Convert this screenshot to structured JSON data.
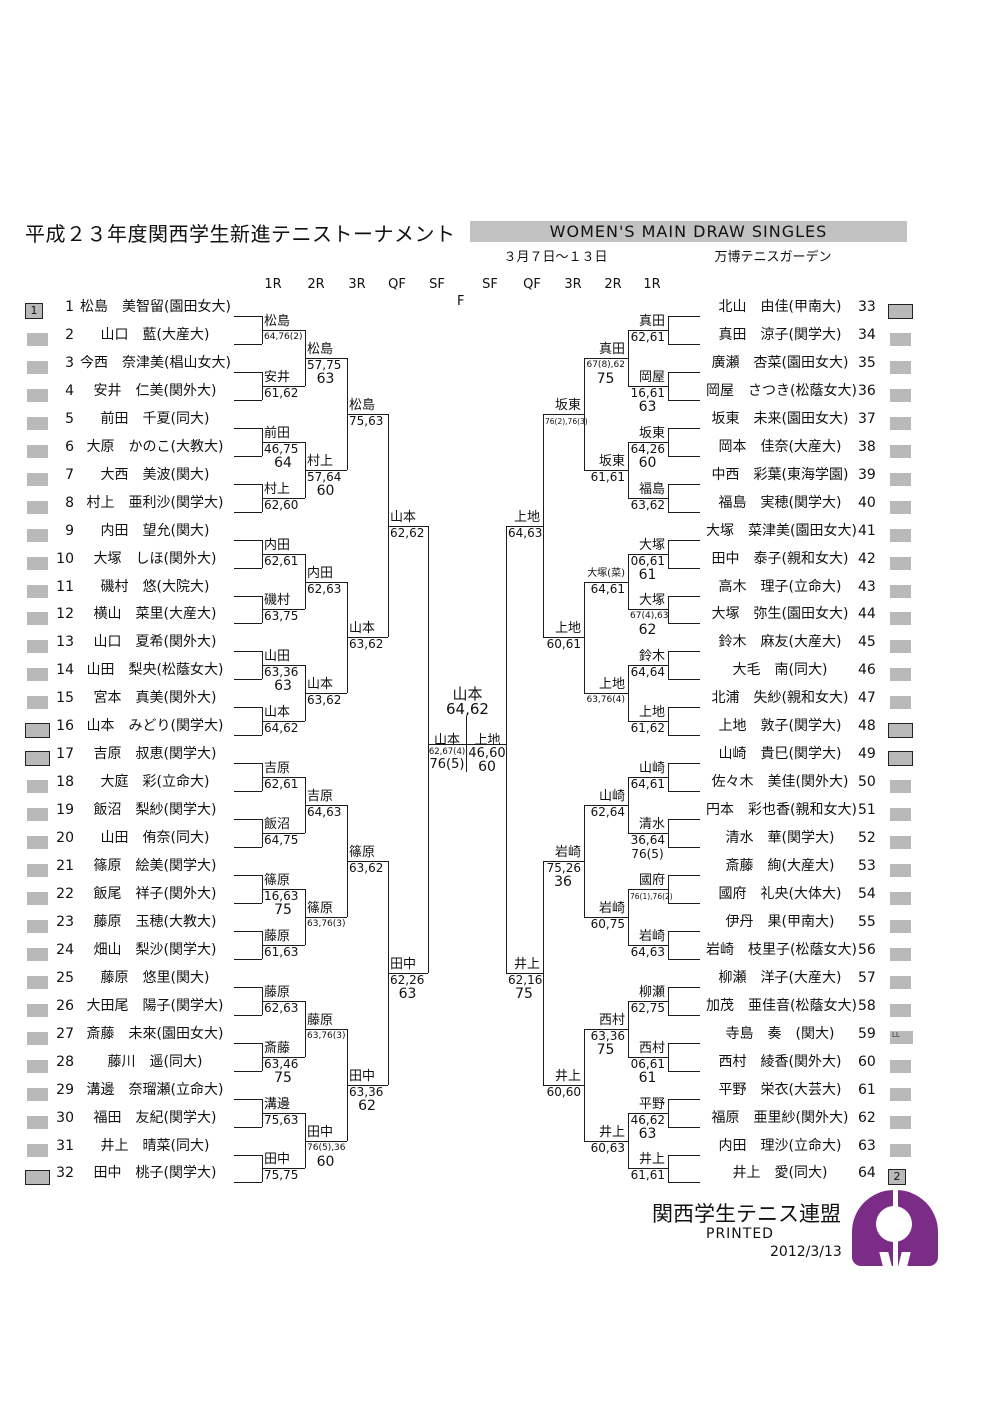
{
  "header": {
    "title": "平成２３年度関西学生新進テニストーナメント",
    "event": "WOMEN'S MAIN DRAW SINGLES",
    "dates": "３月７日～１３日",
    "venue": "万博テニスガーデン",
    "round_labels": [
      "1R",
      "2R",
      "3R",
      "QF",
      "SF",
      "SF",
      "QF",
      "3R",
      "2R",
      "1R"
    ],
    "final_label": "F"
  },
  "colors": {
    "accent": "#7b2c86",
    "bar": "#c2c2c2",
    "box": "#b9b9b9",
    "line": "#1c1c1c"
  },
  "players": [
    {
      "no": "1",
      "name": "松島　美智留(園田女大)",
      "box": "seed",
      "badge": "1"
    },
    {
      "no": "2",
      "name": "山口　藍(大産大)",
      "box": "plain",
      "badge": ""
    },
    {
      "no": "3",
      "name": "今西　奈津美(椙山女大)",
      "box": "plain",
      "badge": ""
    },
    {
      "no": "4",
      "name": "安井　仁美(関外大)",
      "box": "plain",
      "badge": ""
    },
    {
      "no": "5",
      "name": "前田　千夏(同大)",
      "box": "plain",
      "badge": ""
    },
    {
      "no": "6",
      "name": "大原　かのこ(大教大)",
      "box": "plain",
      "badge": ""
    },
    {
      "no": "7",
      "name": "大西　美波(関大)",
      "box": "plain",
      "badge": ""
    },
    {
      "no": "8",
      "name": "村上　亜利沙(関学大)",
      "box": "plain",
      "badge": ""
    },
    {
      "no": "9",
      "name": "内田　望允(関大)",
      "box": "plain",
      "badge": ""
    },
    {
      "no": "10",
      "name": "大塚　しほ(関外大)",
      "box": "plain",
      "badge": ""
    },
    {
      "no": "11",
      "name": "磯村　悠(大院大)",
      "box": "plain",
      "badge": ""
    },
    {
      "no": "12",
      "name": "横山　菜里(大産大)",
      "box": "plain",
      "badge": ""
    },
    {
      "no": "13",
      "name": "山口　夏希(関外大)",
      "box": "plain",
      "badge": ""
    },
    {
      "no": "14",
      "name": "山田　梨央(松蔭女大)",
      "box": "plain",
      "badge": ""
    },
    {
      "no": "15",
      "name": "宮本　真美(関外大)",
      "box": "plain",
      "badge": ""
    },
    {
      "no": "16",
      "name": "山本　みどり(関学大)",
      "box": "bordered",
      "badge": ""
    },
    {
      "no": "17",
      "name": "吉原　叔恵(関学大)",
      "box": "bordered",
      "badge": ""
    },
    {
      "no": "18",
      "name": "大庭　彩(立命大)",
      "box": "plain",
      "badge": ""
    },
    {
      "no": "19",
      "name": "飯沼　梨紗(関学大)",
      "box": "plain",
      "badge": ""
    },
    {
      "no": "20",
      "name": "山田　侑奈(同大)",
      "box": "plain",
      "badge": ""
    },
    {
      "no": "21",
      "name": "篠原　絵美(関学大)",
      "box": "plain",
      "badge": ""
    },
    {
      "no": "22",
      "name": "飯尾　祥子(関外大)",
      "box": "plain",
      "badge": ""
    },
    {
      "no": "23",
      "name": "藤原　玉穂(大教大)",
      "box": "plain",
      "badge": ""
    },
    {
      "no": "24",
      "name": "畑山　梨沙(関学大)",
      "box": "plain",
      "badge": ""
    },
    {
      "no": "25",
      "name": "藤原　悠里(関大)",
      "box": "plain",
      "badge": ""
    },
    {
      "no": "26",
      "name": "大田尾　陽子(関学大)",
      "box": "plain",
      "badge": ""
    },
    {
      "no": "27",
      "name": "斎藤　未來(園田女大)",
      "box": "plain",
      "badge": ""
    },
    {
      "no": "28",
      "name": "藤川　遥(同大)",
      "box": "plain",
      "badge": ""
    },
    {
      "no": "29",
      "name": "溝邊　奈瑠瀬(立命大)",
      "box": "plain",
      "badge": ""
    },
    {
      "no": "30",
      "name": "福田　友紀(関学大)",
      "box": "plain",
      "badge": ""
    },
    {
      "no": "31",
      "name": "井上　晴菜(同大)",
      "box": "plain",
      "badge": ""
    },
    {
      "no": "32",
      "name": "田中　桃子(関学大)",
      "box": "bordered",
      "badge": ""
    },
    {
      "no": "33",
      "name": "北山　由佳(甲南大)",
      "box": "bordered",
      "badge": ""
    },
    {
      "no": "34",
      "name": "真田　涼子(関学大)",
      "box": "plain",
      "badge": ""
    },
    {
      "no": "35",
      "name": "廣瀬　杏菜(園田女大)",
      "box": "plain",
      "badge": ""
    },
    {
      "no": "36",
      "name": "岡屋　さつき(松蔭女大)",
      "box": "plain",
      "badge": ""
    },
    {
      "no": "37",
      "name": "坂東　未来(園田女大)",
      "box": "plain",
      "badge": ""
    },
    {
      "no": "38",
      "name": "岡本　佳奈(大産大)",
      "box": "plain",
      "badge": ""
    },
    {
      "no": "39",
      "name": "中西　彩葉(東海学園)",
      "box": "plain",
      "badge": ""
    },
    {
      "no": "40",
      "name": "福島　実穂(関学大)",
      "box": "plain",
      "badge": ""
    },
    {
      "no": "41",
      "name": "大塚　菜津美(園田女大)",
      "box": "plain",
      "badge": ""
    },
    {
      "no": "42",
      "name": "田中　泰子(親和女大)",
      "box": "plain",
      "badge": ""
    },
    {
      "no": "43",
      "name": "高木　理子(立命大)",
      "box": "plain",
      "badge": ""
    },
    {
      "no": "44",
      "name": "大塚　弥生(園田女大)",
      "box": "plain",
      "badge": ""
    },
    {
      "no": "45",
      "name": "鈴木　麻友(大産大)",
      "box": "plain",
      "badge": ""
    },
    {
      "no": "46",
      "name": "大毛　南(同大)",
      "box": "plain",
      "badge": ""
    },
    {
      "no": "47",
      "name": "北浦　失紗(親和女大)",
      "box": "plain",
      "badge": ""
    },
    {
      "no": "48",
      "name": "上地　敦子(関学大)",
      "box": "bordered",
      "badge": ""
    },
    {
      "no": "49",
      "name": "山崎　貴巳(関学大)",
      "box": "bordered",
      "badge": ""
    },
    {
      "no": "50",
      "name": "佐々木　美佳(関外大)",
      "box": "plain",
      "badge": ""
    },
    {
      "no": "51",
      "name": "円本　彩也香(親和女大)",
      "box": "plain",
      "badge": ""
    },
    {
      "no": "52",
      "name": "清水　華(関学大)",
      "box": "plain",
      "badge": ""
    },
    {
      "no": "53",
      "name": "斎藤　絢(大産大)",
      "box": "plain",
      "badge": ""
    },
    {
      "no": "54",
      "name": "國府　礼央(大体大)",
      "box": "plain",
      "badge": ""
    },
    {
      "no": "55",
      "name": "伊丹　果(甲南大)",
      "box": "plain",
      "badge": ""
    },
    {
      "no": "56",
      "name": "岩崎　枝里子(松蔭女大)",
      "box": "plain",
      "badge": ""
    },
    {
      "no": "57",
      "name": "柳瀬　洋子(大産大)",
      "box": "plain",
      "badge": ""
    },
    {
      "no": "58",
      "name": "加茂　亜佳音(松蔭女大)",
      "box": "plain",
      "badge": ""
    },
    {
      "no": "59",
      "name": "寺島　奏　(関大)",
      "box": "ll",
      "badge": "LL"
    },
    {
      "no": "60",
      "name": "西村　綾香(関外大)",
      "box": "plain",
      "badge": ""
    },
    {
      "no": "61",
      "name": "平野　栄衣(大芸大)",
      "box": "plain",
      "badge": ""
    },
    {
      "no": "62",
      "name": "福原　亜里紗(関外大)",
      "box": "plain",
      "badge": ""
    },
    {
      "no": "63",
      "name": "内田　理沙(立命大)",
      "box": "plain",
      "badge": ""
    },
    {
      "no": "64",
      "name": "井上　愛(同大)",
      "box": "seed",
      "badge": "2"
    }
  ],
  "bracket": {
    "left": {
      "r1": [
        {
          "w": "松島",
          "s": "64,76(2)",
          "s2": ""
        },
        {
          "w": "安井",
          "s": "61,62",
          "s2": ""
        },
        {
          "w": "前田",
          "s": "46,75",
          "s2": "64"
        },
        {
          "w": "村上",
          "s": "62,60",
          "s2": ""
        },
        {
          "w": "内田",
          "s": "62,61",
          "s2": ""
        },
        {
          "w": "磯村",
          "s": "63,75",
          "s2": ""
        },
        {
          "w": "山田",
          "s": "63,36",
          "s2": "63"
        },
        {
          "w": "山本",
          "s": "64,62",
          "s2": ""
        },
        {
          "w": "吉原",
          "s": "62,61",
          "s2": ""
        },
        {
          "w": "飯沼",
          "s": "64,75",
          "s2": ""
        },
        {
          "w": "篠原",
          "s": "16,63",
          "s2": "75"
        },
        {
          "w": "藤原",
          "s": "61,63",
          "s2": ""
        },
        {
          "w": "藤原",
          "s": "62,63",
          "s2": ""
        },
        {
          "w": "斎藤",
          "s": "63,46",
          "s2": "75"
        },
        {
          "w": "溝邊",
          "s": "75,63",
          "s2": ""
        },
        {
          "w": "田中",
          "s": "75,75",
          "s2": ""
        }
      ],
      "r2": [
        {
          "w": "松島",
          "s": "57,75",
          "s2": "63"
        },
        {
          "w": "村上",
          "s": "57,64",
          "s2": "60"
        },
        {
          "w": "内田",
          "s": "62,63",
          "s2": ""
        },
        {
          "w": "山本",
          "s": "63,62",
          "s2": ""
        },
        {
          "w": "吉原",
          "s": "64,63",
          "s2": ""
        },
        {
          "w": "篠原",
          "s": "63,76(3)",
          "s2": ""
        },
        {
          "w": "藤原",
          "s": "63,76(3)",
          "s2": ""
        },
        {
          "w": "田中",
          "s": "76(5),36",
          "s2": "60"
        }
      ],
      "r3": [
        {
          "w": "松島",
          "s": "75,63",
          "s2": ""
        },
        {
          "w": "山本",
          "s": "63,62",
          "s2": ""
        },
        {
          "w": "篠原",
          "s": "63,62",
          "s2": ""
        },
        {
          "w": "田中",
          "s": "63,36",
          "s2": "62"
        }
      ],
      "qf": [
        {
          "w": "山本",
          "s": "62,62",
          "s2": ""
        },
        {
          "w": "田中",
          "s": "62,26",
          "s2": "63"
        }
      ]
    },
    "right": {
      "r1": [
        {
          "w": "真田",
          "s": "62,61",
          "s2": ""
        },
        {
          "w": "岡屋",
          "s": "16,61",
          "s2": "63"
        },
        {
          "w": "坂東",
          "s": "64,26",
          "s2": "60"
        },
        {
          "w": "福島",
          "s": "63,62",
          "s2": ""
        },
        {
          "w": "大塚",
          "s": "06,61",
          "s2": "61"
        },
        {
          "w": "大塚",
          "s": "67(4),63",
          "s2": "62"
        },
        {
          "w": "鈴木",
          "s": "64,64",
          "s2": ""
        },
        {
          "w": "上地",
          "s": "61,62",
          "s2": ""
        },
        {
          "w": "山崎",
          "s": "64,61",
          "s2": ""
        },
        {
          "w": "清水",
          "s": "36,64",
          "s2": "76(5)"
        },
        {
          "w": "國府",
          "s": "76(1),76(2)",
          "s2": ""
        },
        {
          "w": "岩崎",
          "s": "64,63",
          "s2": ""
        },
        {
          "w": "柳瀬",
          "s": "62,75",
          "s2": ""
        },
        {
          "w": "西村",
          "s": "06,61",
          "s2": "61"
        },
        {
          "w": "平野",
          "s": "46,62",
          "s2": "63"
        },
        {
          "w": "井上",
          "s": "61,61",
          "s2": ""
        }
      ],
      "r2": [
        {
          "w": "真田",
          "s": "67(8),62",
          "s2": "75"
        },
        {
          "w": "坂東",
          "s": "61,61",
          "s2": ""
        },
        {
          "w": "大塚(菜)",
          "s": "64,61",
          "s2": ""
        },
        {
          "w": "上地",
          "s": "63,76(4)",
          "s2": ""
        },
        {
          "w": "山崎",
          "s": "62,64",
          "s2": ""
        },
        {
          "w": "岩崎",
          "s": "60,75",
          "s2": ""
        },
        {
          "w": "西村",
          "s": "63,36",
          "s2": "75"
        },
        {
          "w": "井上",
          "s": "60,63",
          "s2": ""
        }
      ],
      "r3": [
        {
          "w": "坂東",
          "s": "76(2),76(3)",
          "s2": ""
        },
        {
          "w": "上地",
          "s": "60,61",
          "s2": ""
        },
        {
          "w": "岩崎",
          "s": "75,26",
          "s2": "36"
        },
        {
          "w": "井上",
          "s": "60,60",
          "s2": ""
        }
      ],
      "qf": [
        {
          "w": "上地",
          "s": "64,63",
          "s2": ""
        },
        {
          "w": "井上",
          "s": "62,16",
          "s2": "75"
        }
      ]
    }
  },
  "final": {
    "champion": "山本",
    "score": "64,62",
    "sf_left": {
      "w": "山本",
      "s": "62,67(4)",
      "s2": "76(5)"
    },
    "sf_right": {
      "w": "上地",
      "s": "46,60",
      "s2": "60"
    }
  },
  "footer": {
    "org": "関西学生テニス連盟",
    "printed": "PRINTED",
    "date": "2012/3/13",
    "logo": "kansai-student-tennis-federation-logo"
  }
}
